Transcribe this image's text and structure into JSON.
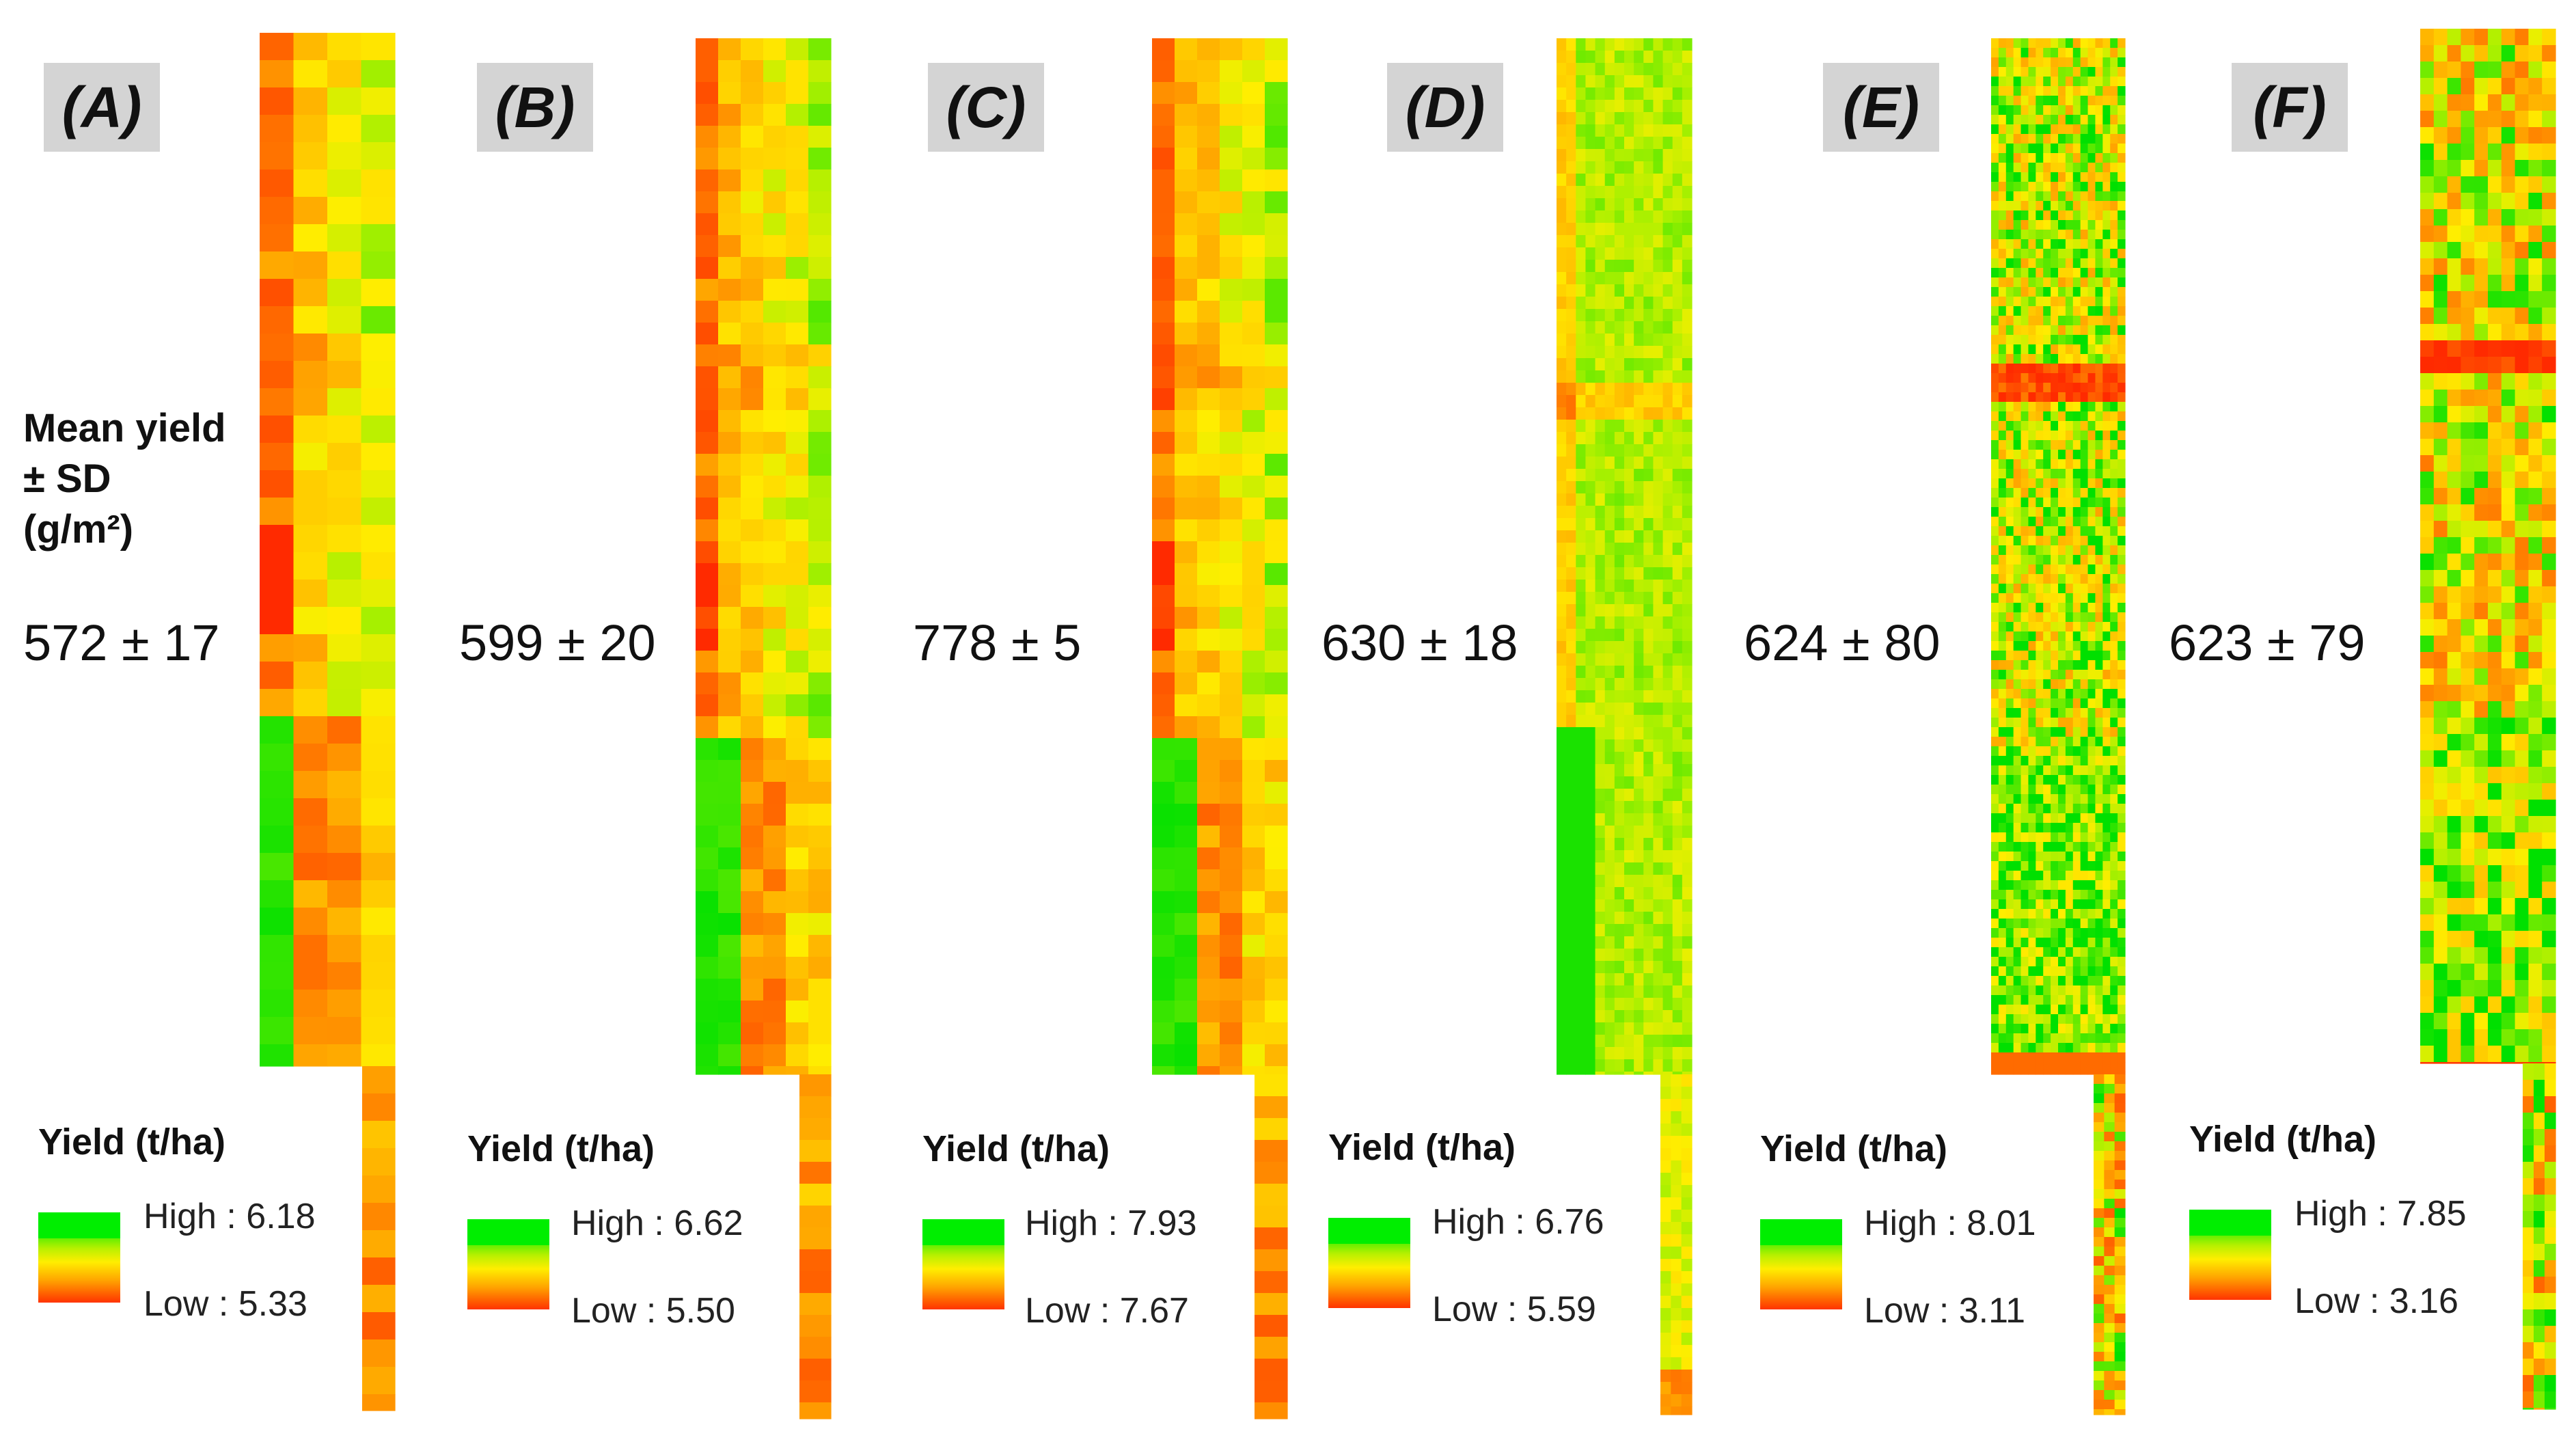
{
  "mean_label": [
    "Mean yield",
    "± SD",
    "(g/m²)"
  ],
  "legend_title": "Yield (t/ha)",
  "colors": {
    "high": "#00e000",
    "mid": "#ffee00",
    "low": "#ff2a00",
    "tag_bg": "#d4d4d4"
  },
  "panels": [
    {
      "label": "(A)",
      "stat": "572 ± 17",
      "high": "High : 6.18",
      "low": "Low : 5.33"
    },
    {
      "label": "(B)",
      "stat": "599 ± 20",
      "high": "High : 6.62",
      "low": "Low : 5.50"
    },
    {
      "label": "(C)",
      "stat": "778 ± 5",
      "high": "High : 7.93",
      "low": "Low : 7.67"
    },
    {
      "label": "(D)",
      "stat": "630 ± 18",
      "high": "High : 6.76",
      "low": "Low : 5.59"
    },
    {
      "label": "(E)",
      "stat": "624 ± 80",
      "high": "High : 8.01",
      "low": "Low : 3.11"
    },
    {
      "label": "(F)",
      "stat": "623 ± 79",
      "high": "High : 7.85",
      "low": "Low : 3.16"
    }
  ]
}
